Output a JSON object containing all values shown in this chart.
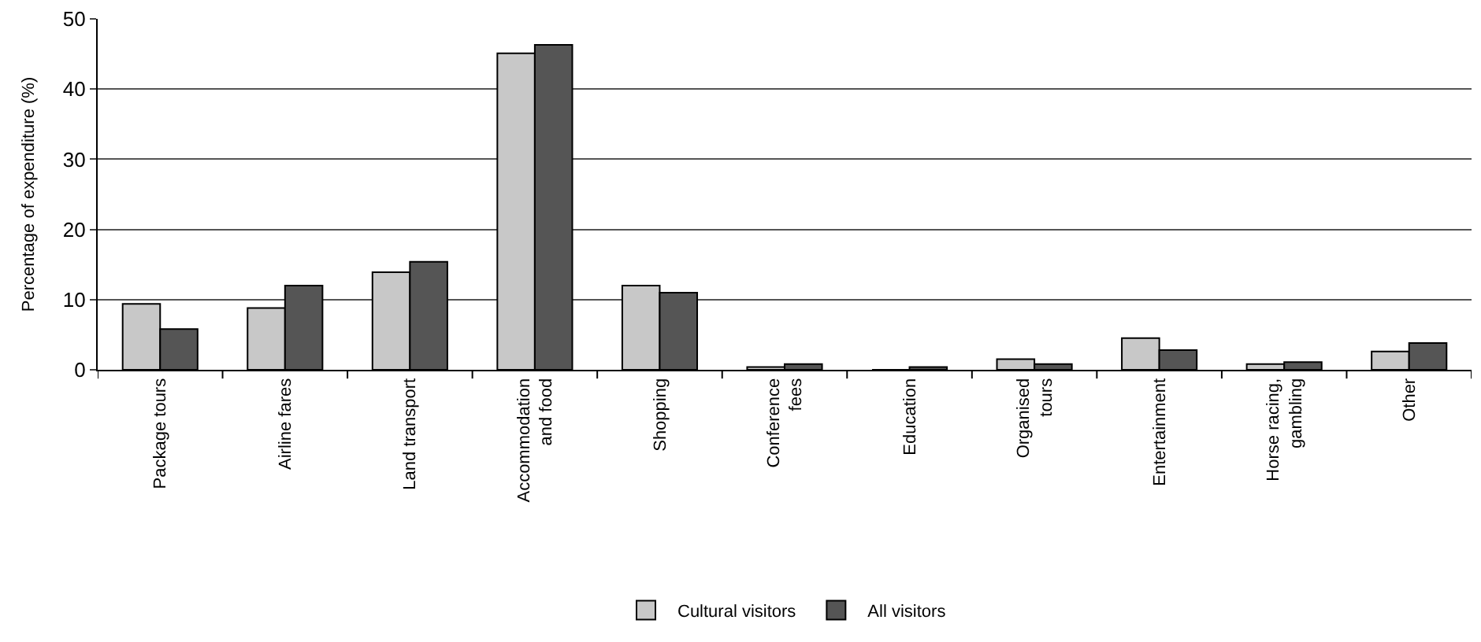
{
  "chart_data": {
    "type": "bar",
    "ylabel": "Percentage of expenditure (%)",
    "categories": [
      "Package tours",
      "Airline fares",
      "Land transport",
      "Accommodation\nand food",
      "Shopping",
      "Conference\nfees",
      "Education",
      "Organised\ntours",
      "Entertainment",
      "Horse racing,\ngambling",
      "Other"
    ],
    "series": [
      {
        "name": "Cultural visitors",
        "color": "#c8c8c8",
        "values": [
          9.4,
          8.8,
          13.9,
          45.1,
          12.0,
          0.4,
          0,
          1.5,
          4.5,
          0.8,
          2.6
        ]
      },
      {
        "name": "All visitors",
        "color": "#555555",
        "values": [
          5.8,
          12.0,
          15.4,
          46.3,
          11.0,
          0.8,
          0.4,
          0.8,
          2.8,
          1.1,
          3.8
        ]
      }
    ],
    "ylim": [
      0,
      50
    ],
    "yticks": [
      0,
      10,
      20,
      30,
      40,
      50
    ],
    "grid": "y",
    "legend": "bottom"
  }
}
